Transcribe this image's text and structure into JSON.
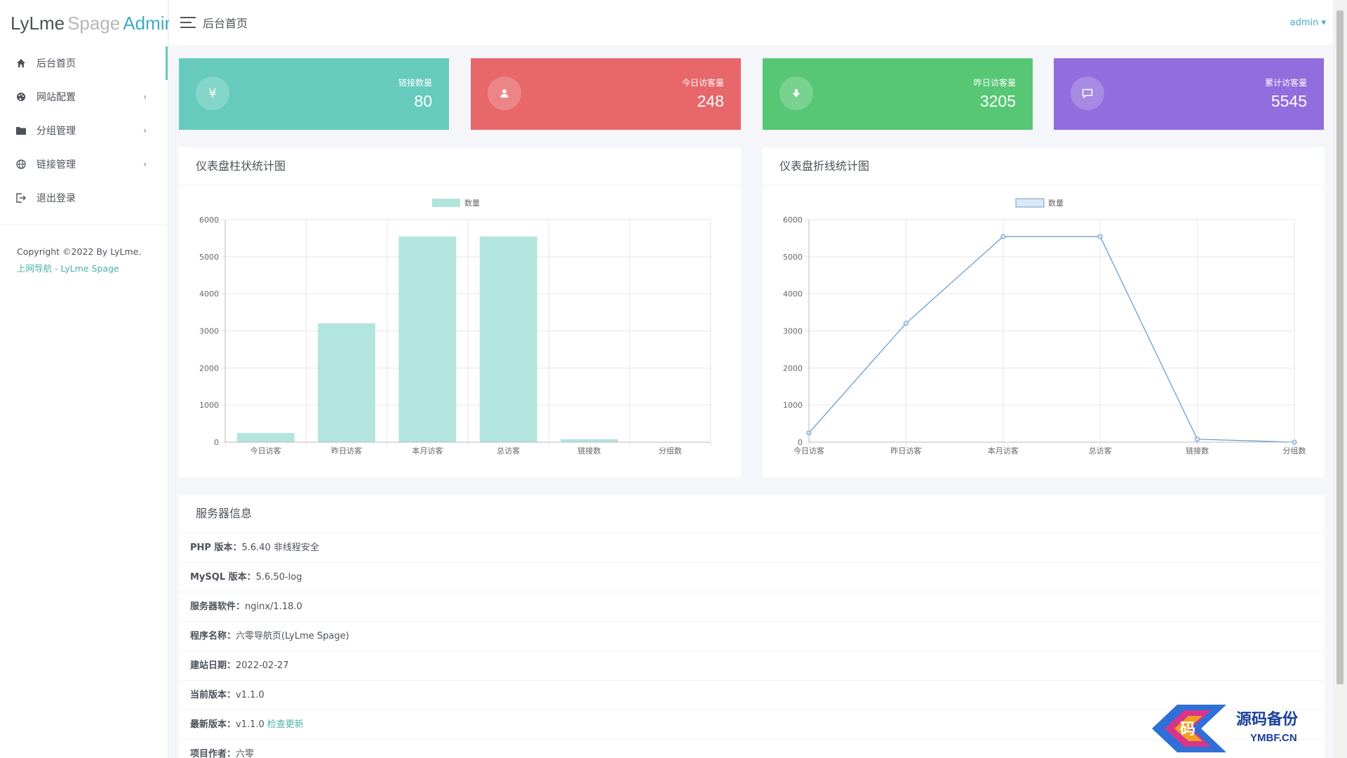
{
  "brand": {
    "part1": "LyLme",
    "part2": "Spage",
    "part3": "Admin"
  },
  "sidebar": {
    "items": [
      {
        "label": "后台首页",
        "icon": "home-icon",
        "has_chevron": false,
        "active": true
      },
      {
        "label": "网站配置",
        "icon": "palette-icon",
        "has_chevron": true,
        "active": false
      },
      {
        "label": "分组管理",
        "icon": "folder-icon",
        "has_chevron": true,
        "active": false
      },
      {
        "label": "链接管理",
        "icon": "globe-icon",
        "has_chevron": true,
        "active": false
      },
      {
        "label": "退出登录",
        "icon": "logout-icon",
        "has_chevron": false,
        "active": false
      }
    ],
    "chevron": "›",
    "copyright": "Copyright ©2022 By LyLme.",
    "copyright_link": "上网导航 - LyLme Spage"
  },
  "header": {
    "title": "后台首页",
    "user": "admin ▾"
  },
  "stats": [
    {
      "label": "链接数量",
      "value": "80",
      "icon": "yen-icon",
      "glyph": "¥",
      "color": "#66cbbd"
    },
    {
      "label": "今日访客量",
      "value": "248",
      "icon": "user-icon",
      "glyph": "",
      "color": "#e8676a"
    },
    {
      "label": "昨日访客量",
      "value": "3205",
      "icon": "download-icon",
      "glyph": "",
      "color": "#58c775"
    },
    {
      "label": "累计访客量",
      "value": "5545",
      "icon": "comment-icon",
      "glyph": "",
      "color": "#926dde"
    }
  ],
  "panels": {
    "bar_title": "仪表盘柱状统计图",
    "line_title": "仪表盘折线统计图",
    "server_title": "服务器信息"
  },
  "chart_data": [
    {
      "type": "bar",
      "categories": [
        "今日访客",
        "昨日访客",
        "本月访客",
        "总访客",
        "链接数",
        "分组数"
      ],
      "series": [
        {
          "name": "数量",
          "values": [
            248,
            3205,
            5545,
            5545,
            80,
            0
          ]
        }
      ],
      "ylim": [
        0,
        6000
      ],
      "yticks": [
        "0",
        "1000",
        "2000",
        "3000",
        "4000",
        "5000",
        "6000"
      ],
      "legend": "top-center",
      "grid": true,
      "color": "#b2e5dd"
    },
    {
      "type": "line",
      "categories": [
        "今日访客",
        "昨日访客",
        "本月访客",
        "总访客",
        "链接数",
        "分组数"
      ],
      "series": [
        {
          "name": "数量",
          "values": [
            248,
            3205,
            5545,
            5545,
            80,
            0
          ]
        }
      ],
      "ylim": [
        0,
        6000
      ],
      "yticks": [
        "0",
        "1000",
        "2000",
        "3000",
        "4000",
        "5000",
        "6000"
      ],
      "legend": "top-center",
      "grid": true,
      "color": "#6b9ecf"
    }
  ],
  "server": [
    {
      "label": "PHP 版本：",
      "value": "5.6.40 非线程安全"
    },
    {
      "label": "MySQL 版本：",
      "value": "5.6.50-log"
    },
    {
      "label": "服务器软件：",
      "value": "nginx/1.18.0"
    },
    {
      "label": "程序名称：",
      "value": "六零导航页(LyLme Spage)"
    },
    {
      "label": "建站日期：",
      "value": "2022-02-27"
    },
    {
      "label": "当前版本：",
      "value": "v1.1.0"
    },
    {
      "label": "最新版本：",
      "value": "v1.1.0",
      "action": "检查更新"
    },
    {
      "label": "项目作者：",
      "value": "六零"
    }
  ],
  "watermark": {
    "title": "源码备份",
    "subtitle": "YMBF.CN",
    "glyph": "码"
  }
}
